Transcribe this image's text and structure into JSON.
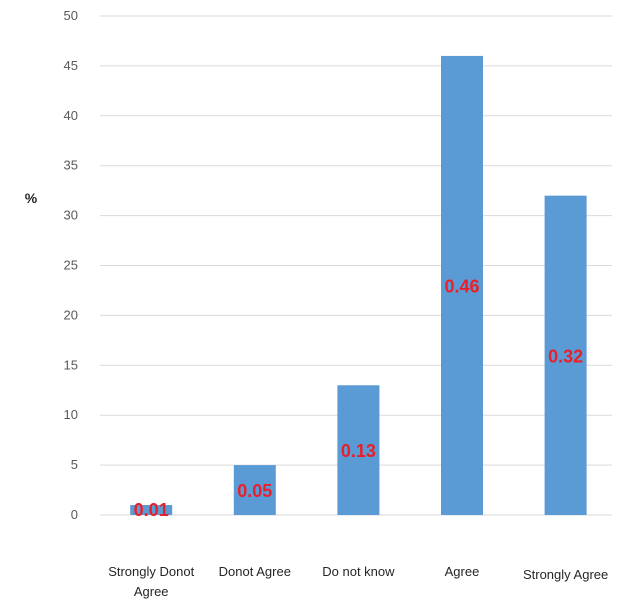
{
  "chart_data": {
    "type": "bar",
    "title": "",
    "xlabel": "",
    "ylabel": "%",
    "ylim": [
      0,
      50
    ],
    "yticks": [
      "0",
      "5",
      "10",
      "15",
      "20",
      "25",
      "30",
      "35",
      "40",
      "45",
      "50"
    ],
    "grid": true,
    "categories": [
      "Strongly Donot Agree",
      "Donot Agree",
      "Do not know",
      "Agree",
      "Strongly Agree"
    ],
    "values": [
      1,
      5,
      13,
      46,
      32
    ],
    "data_labels": [
      "0.01",
      "0.05",
      "0.13",
      "0.46",
      "0.32"
    ],
    "bar_color": "#5b9bd5",
    "label_color": "#e8202a"
  }
}
